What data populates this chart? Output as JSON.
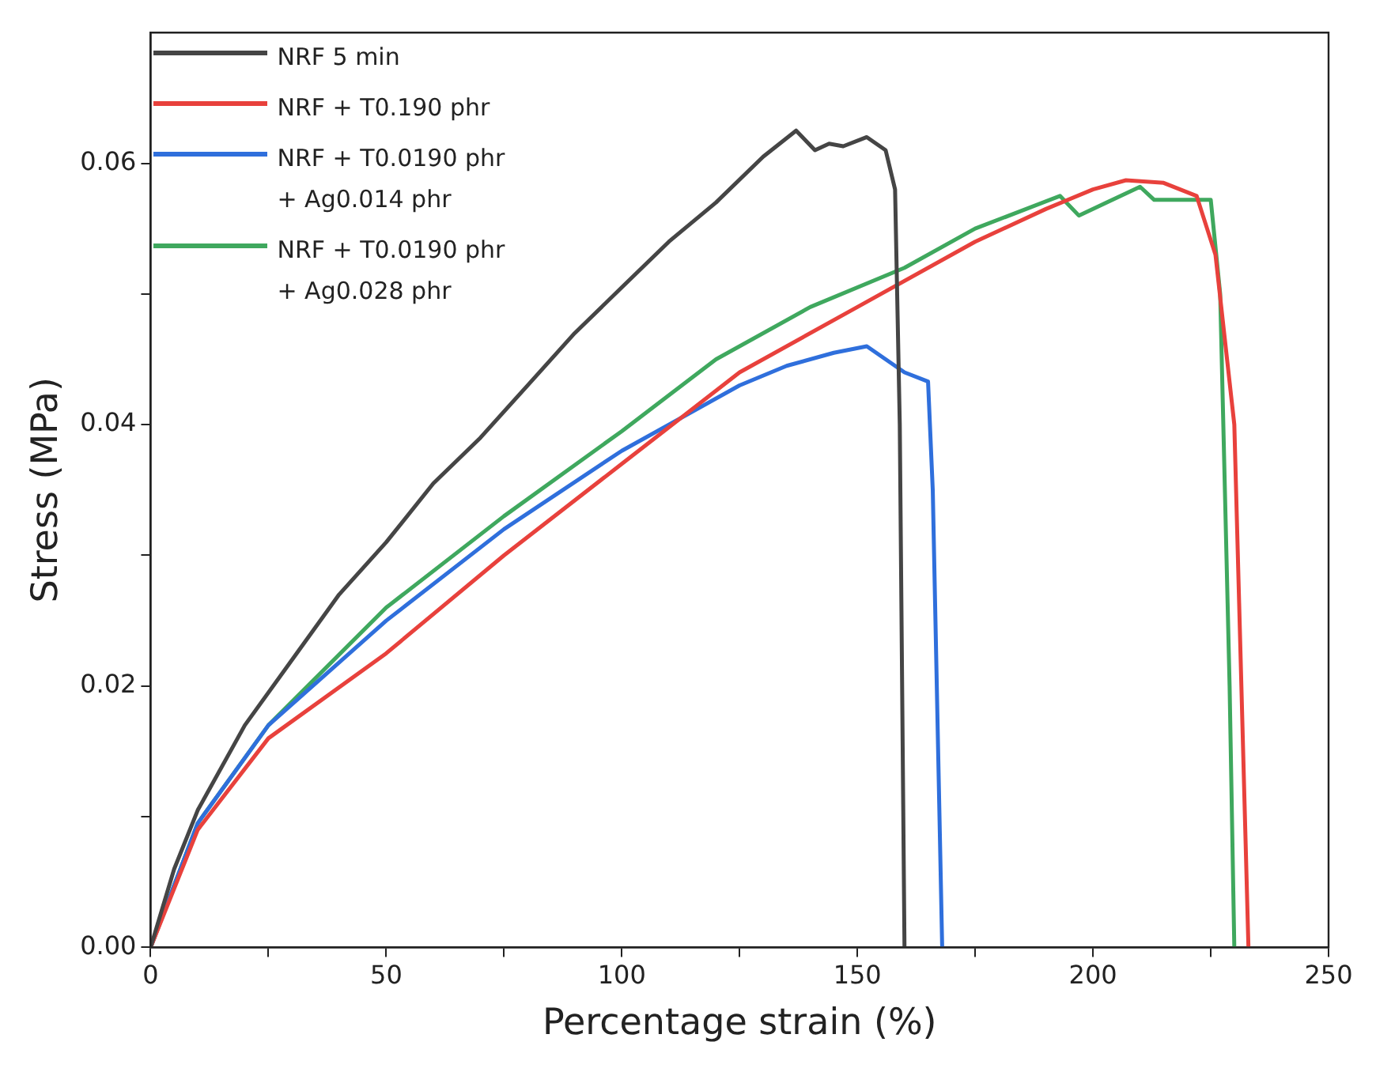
{
  "chart_data": {
    "type": "line",
    "xlabel": "Percentage strain (%)",
    "ylabel": "Stress (MPa)",
    "xlim": [
      0,
      250
    ],
    "ylim": [
      0,
      0.07
    ],
    "xticks": [
      0,
      {
        "value": 25,
        "label": null
      },
      50,
      {
        "value": 75,
        "label": null
      },
      100,
      {
        "value": 125,
        "label": null
      },
      150,
      {
        "value": 175,
        "label": null
      },
      200,
      {
        "value": 225,
        "label": null
      },
      250
    ],
    "yticks": [
      "0.00",
      {
        "value": 0.01,
        "label": null
      },
      {
        "value": 0.02,
        "label": "0.02"
      },
      {
        "value": 0.03,
        "label": null
      },
      {
        "value": 0.04,
        "label": "0.04"
      },
      {
        "value": 0.05,
        "label": null
      },
      {
        "value": 0.06,
        "label": "0.06"
      }
    ],
    "grid": false,
    "legend": "top left",
    "marker": "none",
    "line_style": "solid",
    "series": [
      {
        "name": "NRF 5 min",
        "color": "#454545",
        "x": [
          0,
          5,
          10,
          20,
          30,
          40,
          50,
          60,
          70,
          80,
          90,
          100,
          110,
          120,
          130,
          137,
          141,
          144,
          147,
          152,
          156,
          158,
          159,
          160
        ],
        "values": [
          0,
          0.006,
          0.0105,
          0.017,
          0.022,
          0.027,
          0.031,
          0.0355,
          0.039,
          0.043,
          0.047,
          0.0505,
          0.054,
          0.057,
          0.0605,
          0.0625,
          0.061,
          0.0615,
          0.0613,
          0.062,
          0.061,
          0.058,
          0.04,
          0
        ]
      },
      {
        "name": "NRF + T0.190 phr",
        "color": "#e8413c",
        "x": [
          0,
          10,
          25,
          50,
          75,
          100,
          125,
          150,
          175,
          190,
          200,
          207,
          215,
          222,
          226,
          230,
          233
        ],
        "values": [
          0,
          0.009,
          0.016,
          0.0225,
          0.03,
          0.037,
          0.044,
          0.049,
          0.054,
          0.0565,
          0.058,
          0.0587,
          0.0585,
          0.0575,
          0.053,
          0.04,
          0
        ]
      },
      {
        "name": "NRF + T0.0190 phr + Ag0.014 phr",
        "color": "#2f6fdc",
        "x": [
          0,
          10,
          25,
          50,
          75,
          100,
          125,
          135,
          145,
          152,
          156,
          160,
          165,
          166,
          168
        ],
        "values": [
          0,
          0.0095,
          0.017,
          0.025,
          0.032,
          0.038,
          0.043,
          0.0445,
          0.0455,
          0.046,
          0.045,
          0.044,
          0.0433,
          0.035,
          0
        ]
      },
      {
        "name": "NRF + T0.0190 phr + Ag0.028 phr",
        "color": "#3fa85e",
        "x": [
          0,
          10,
          25,
          50,
          75,
          100,
          120,
          140,
          160,
          175,
          193,
          197,
          210,
          213,
          225,
          227,
          229,
          230
        ],
        "values": [
          0,
          0.0095,
          0.017,
          0.026,
          0.033,
          0.0395,
          0.045,
          0.049,
          0.052,
          0.055,
          0.0575,
          0.056,
          0.0582,
          0.0572,
          0.0572,
          0.05,
          0.02,
          0
        ]
      }
    ]
  }
}
